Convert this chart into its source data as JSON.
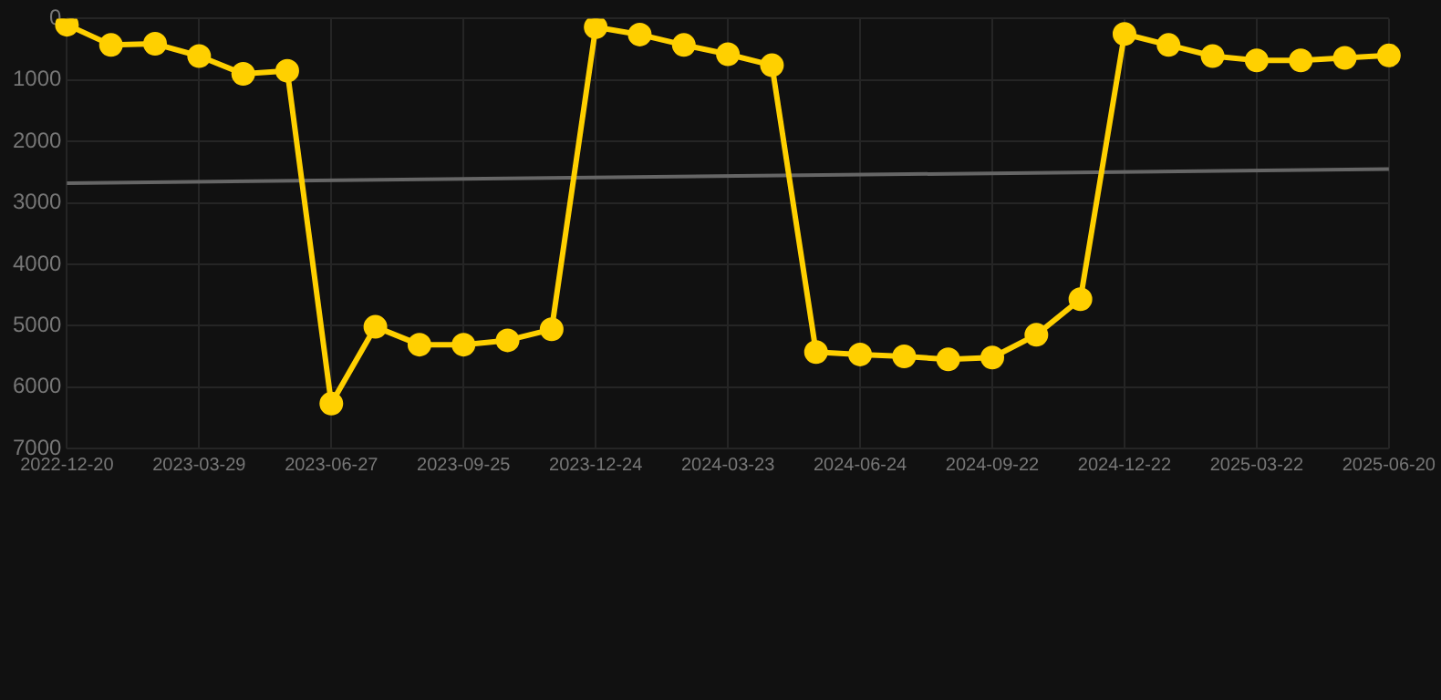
{
  "chart_data": {
    "type": "line",
    "categories": [
      "2022-12-20",
      null,
      null,
      "2023-03-29",
      null,
      null,
      "2023-06-27",
      null,
      null,
      "2023-09-25",
      null,
      null,
      "2023-12-24",
      null,
      null,
      "2024-03-23",
      null,
      null,
      "2024-06-24",
      null,
      null,
      "2024-09-22",
      null,
      null,
      "2024-12-22",
      null,
      null,
      "2025-03-22",
      null,
      null,
      "2025-06-20"
    ],
    "series": [
      {
        "color": "#ffd000",
        "marker": "circle",
        "values": [
          100,
          430,
          410,
          610,
          900,
          850,
          6270,
          5020,
          5310,
          5310,
          5240,
          5060,
          140,
          260,
          430,
          580,
          760,
          5430,
          5470,
          5500,
          5550,
          5520,
          5150,
          4570,
          250,
          430,
          610,
          680,
          680,
          640,
          600
        ]
      },
      {
        "color": "#666666",
        "marker": "none",
        "values": [
          2680,
          null,
          null,
          null,
          null,
          null,
          null,
          null,
          null,
          null,
          null,
          null,
          null,
          null,
          null,
          null,
          null,
          null,
          null,
          null,
          null,
          null,
          null,
          null,
          null,
          null,
          null,
          null,
          null,
          null,
          2450
        ]
      }
    ],
    "ylim": [
      7000,
      0
    ],
    "yticks": [
      0,
      1000,
      2000,
      3000,
      4000,
      5000,
      6000,
      7000
    ],
    "grid": true,
    "legend": false
  }
}
